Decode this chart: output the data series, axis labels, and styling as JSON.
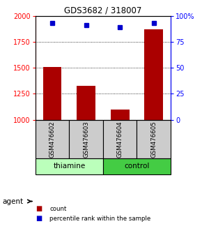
{
  "title": "GDS3682 / 318007",
  "samples": [
    "GSM476602",
    "GSM476603",
    "GSM476604",
    "GSM476605"
  ],
  "counts": [
    1510,
    1330,
    1100,
    1870
  ],
  "percentiles": [
    93,
    91,
    89,
    93
  ],
  "ylim_left": [
    1000,
    2000
  ],
  "ylim_right": [
    0,
    100
  ],
  "yticks_left": [
    1000,
    1250,
    1500,
    1750,
    2000
  ],
  "yticks_right": [
    0,
    25,
    50,
    75,
    100
  ],
  "bar_color": "#aa0000",
  "dot_color": "#0000cc",
  "bar_bottom": 1000,
  "groups": [
    {
      "label": "thiamine",
      "samples": [
        0,
        1
      ],
      "color": "#bbffbb"
    },
    {
      "label": "control",
      "samples": [
        2,
        3
      ],
      "color": "#44cc44"
    }
  ],
  "sample_box_color": "#cccccc",
  "agent_label": "agent",
  "legend_count_color": "#aa0000",
  "legend_pct_color": "#0000cc",
  "legend_count_label": "count",
  "legend_pct_label": "percentile rank within the sample"
}
